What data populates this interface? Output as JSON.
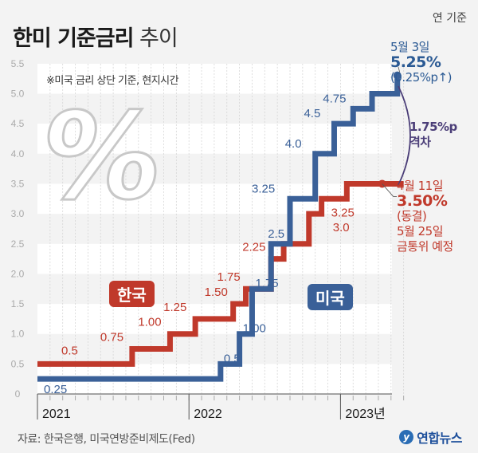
{
  "header": {
    "title_bold": "한미 기준금리",
    "title_light": "추이",
    "unit": "연 기준",
    "note": "※미국 금리 상단 기준, 현지시간"
  },
  "annotations": {
    "us": {
      "date": "5월 3일",
      "value": "5.25%",
      "change": "(0.25%p↑)"
    },
    "kr": {
      "date": "4월 11일",
      "value": "3.50%",
      "status": "(동결)",
      "next_date": "5월 25일",
      "next_event": "금통위 예정"
    },
    "gap": {
      "value": "1.75%p",
      "label": "격차"
    }
  },
  "legend": {
    "kr": "한국",
    "us": "미국"
  },
  "footer": {
    "source": "자료: 한국은행, 미국연방준비제도(Fed)",
    "logo": "연합뉴스"
  },
  "colors": {
    "kr": "#c0392b",
    "us": "#3a6098",
    "gap": "#4b3e78"
  },
  "chart_data": {
    "type": "line",
    "step": true,
    "title": "한미 기준금리 추이",
    "ylabel": "연 기준 (%)",
    "ylim": [
      0,
      5.5
    ],
    "yticks": [
      "0",
      "0.5",
      "1.0",
      "1.5",
      "2.0",
      "2.5",
      "3.0",
      "3.5",
      "4.0",
      "4.5",
      "5.0",
      "5.5"
    ],
    "xlabels": [
      "2021",
      "2022",
      "2023년"
    ],
    "x_unit": "months since 2021-01",
    "xlim": [
      0,
      29
    ],
    "series": [
      {
        "name": "한국",
        "color": "#c0392b",
        "steps": [
          {
            "x": 0,
            "y": 0.5,
            "label": "0.5"
          },
          {
            "x": 7.5,
            "y": 0.75,
            "label": "0.75"
          },
          {
            "x": 10.5,
            "y": 1.0,
            "label": "1.00"
          },
          {
            "x": 12.5,
            "y": 1.25,
            "label": "1.25"
          },
          {
            "x": 15.5,
            "y": 1.5,
            "label": "1.50"
          },
          {
            "x": 16.5,
            "y": 1.75,
            "label": "1.75"
          },
          {
            "x": 18.5,
            "y": 2.25,
            "label": "2.25"
          },
          {
            "x": 19.5,
            "y": 2.5,
            "label": ""
          },
          {
            "x": 21.5,
            "y": 3.0,
            "label": "3.0"
          },
          {
            "x": 22.5,
            "y": 3.25,
            "label": "3.25"
          },
          {
            "x": 24.5,
            "y": 3.5,
            "label": ""
          }
        ],
        "end_x": 29
      },
      {
        "name": "미국",
        "color": "#3a6098",
        "steps": [
          {
            "x": 0,
            "y": 0.25,
            "label": "0.25"
          },
          {
            "x": 14.5,
            "y": 0.5,
            "label": "0.5"
          },
          {
            "x": 16,
            "y": 1.0,
            "label": "1.00"
          },
          {
            "x": 17,
            "y": 1.75,
            "label": "1.75"
          },
          {
            "x": 18.5,
            "y": 2.5,
            "label": "2.5"
          },
          {
            "x": 20,
            "y": 3.25,
            "label": "3.25"
          },
          {
            "x": 22,
            "y": 4.0,
            "label": "4.0"
          },
          {
            "x": 23.5,
            "y": 4.5,
            "label": "4.5"
          },
          {
            "x": 25,
            "y": 4.75,
            "label": "4.75"
          },
          {
            "x": 26.5,
            "y": 5.0,
            "label": ""
          },
          {
            "x": 28.5,
            "y": 5.25,
            "label": ""
          }
        ],
        "end_x": 28.5
      }
    ]
  }
}
